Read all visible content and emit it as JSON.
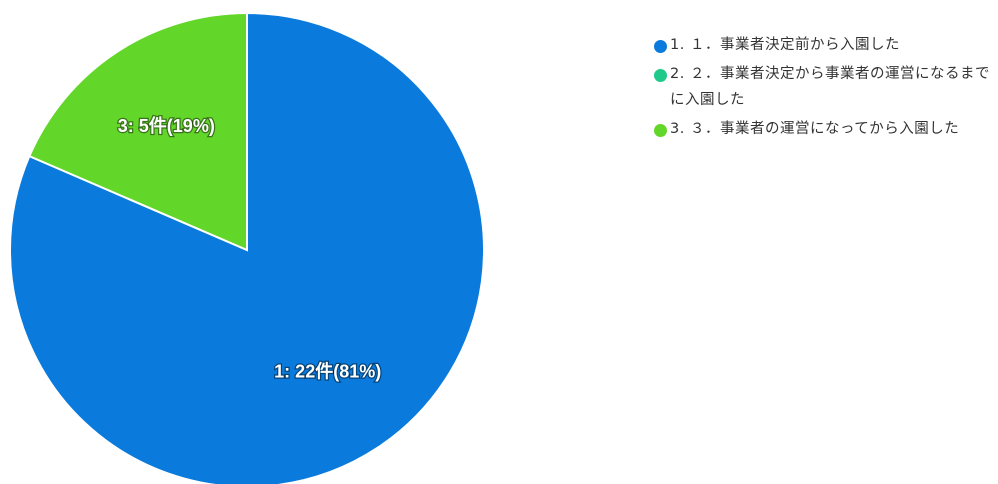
{
  "chart_data": {
    "type": "pie",
    "slices": [
      {
        "key": "1",
        "count": 22,
        "unit": "件",
        "percent": 81,
        "label": "1: 22件(81%)",
        "color": "#0a7bdc",
        "legend": "1. １．事業者決定前から入園した"
      },
      {
        "key": "2",
        "count": 0,
        "unit": "件",
        "percent": 0,
        "label": "",
        "color": "#1ec98a",
        "legend": "2. ２．事業者決定から事業者の運営になるまでに入園した"
      },
      {
        "key": "3",
        "count": 5,
        "unit": "件",
        "percent": 19,
        "label": "3: 5件(19%)",
        "color": "#63d62a",
        "legend": "3. ３．事業者の運営になってから入園した"
      }
    ],
    "legend_position": "right"
  }
}
